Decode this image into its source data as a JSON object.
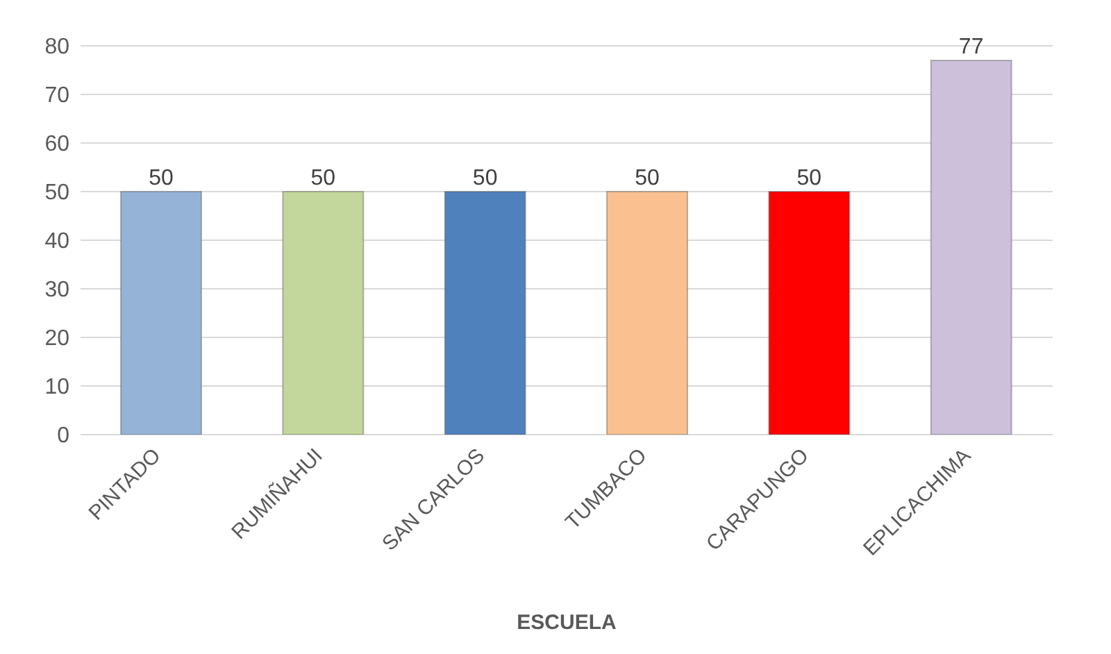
{
  "chart_data": {
    "type": "bar",
    "xlabel": "ESCUELA",
    "categories": [
      "PINTADO",
      "RUMIÑAHUI",
      "SAN CARLOS",
      "TUMBACO",
      "CARAPUNGO",
      "EPLICACHIMA"
    ],
    "values": [
      50,
      50,
      50,
      50,
      50,
      77
    ],
    "colors": [
      "#95b3d7",
      "#c3d69b",
      "#4f81bd",
      "#fac090",
      "#ff0000",
      "#ccc0da"
    ],
    "ylim": [
      0,
      80
    ],
    "yticks": [
      0,
      10,
      20,
      30,
      40,
      50,
      60,
      70,
      80
    ],
    "grid": "y",
    "data_labels": true
  }
}
